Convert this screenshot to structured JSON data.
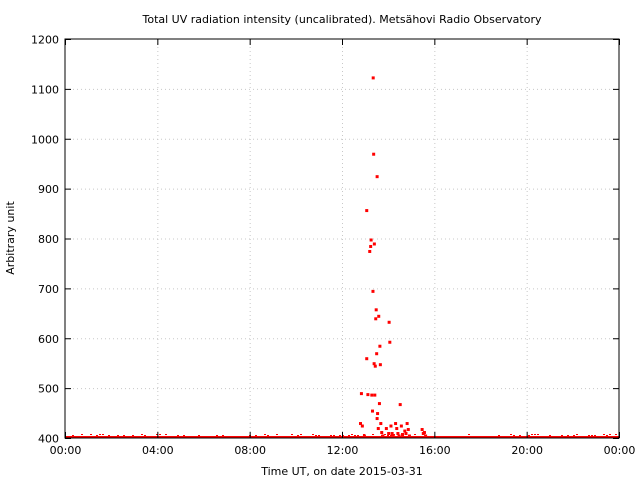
{
  "chart_data": {
    "type": "scatter",
    "title": "Total UV radiation intensity (uncalibrated). Metsähovi Radio Observatory",
    "xlabel": "Time UT, on date 2015-03-31",
    "ylabel": "Arbitrary unit",
    "xlim": [
      0,
      24
    ],
    "ylim": [
      400,
      1200
    ],
    "x_ticks": [
      {
        "value": 0,
        "label": "00:00"
      },
      {
        "value": 4,
        "label": "04:00"
      },
      {
        "value": 8,
        "label": "08:00"
      },
      {
        "value": 12,
        "label": "12:00"
      },
      {
        "value": 16,
        "label": "16:00"
      },
      {
        "value": 20,
        "label": "20:00"
      },
      {
        "value": 24,
        "label": "00:00"
      }
    ],
    "y_ticks": [
      400,
      500,
      600,
      700,
      800,
      900,
      1000,
      1100,
      1200
    ],
    "grid": true,
    "marker_color": "#ff0000",
    "series": [
      {
        "points": [
          [
            12.78,
            430
          ],
          [
            12.82,
            490
          ],
          [
            12.86,
            425
          ],
          [
            12.95,
            405
          ],
          [
            13.05,
            560
          ],
          [
            13.05,
            857
          ],
          [
            13.1,
            488
          ],
          [
            13.18,
            775
          ],
          [
            13.22,
            785
          ],
          [
            13.24,
            798
          ],
          [
            13.27,
            487
          ],
          [
            13.3,
            455
          ],
          [
            13.32,
            695
          ],
          [
            13.33,
            1123
          ],
          [
            13.35,
            970
          ],
          [
            13.37,
            550
          ],
          [
            13.38,
            790
          ],
          [
            13.4,
            487
          ],
          [
            13.42,
            545
          ],
          [
            13.44,
            640
          ],
          [
            13.46,
            658
          ],
          [
            13.48,
            570
          ],
          [
            13.5,
            925
          ],
          [
            13.5,
            440
          ],
          [
            13.52,
            450
          ],
          [
            13.55,
            420
          ],
          [
            13.57,
            645
          ],
          [
            13.6,
            470
          ],
          [
            13.62,
            585
          ],
          [
            13.64,
            548
          ],
          [
            13.66,
            430
          ],
          [
            13.7,
            412
          ],
          [
            13.75,
            405
          ],
          [
            13.9,
            420
          ],
          [
            14.0,
            410
          ],
          [
            14.02,
            633
          ],
          [
            14.05,
            593
          ],
          [
            14.1,
            425
          ],
          [
            14.15,
            410
          ],
          [
            14.2,
            405
          ],
          [
            14.3,
            430
          ],
          [
            14.35,
            420
          ],
          [
            14.4,
            410
          ],
          [
            14.45,
            405
          ],
          [
            14.5,
            468
          ],
          [
            14.55,
            425
          ],
          [
            14.6,
            408
          ],
          [
            14.7,
            415
          ],
          [
            14.75,
            410
          ],
          [
            14.8,
            430
          ],
          [
            14.85,
            418
          ],
          [
            14.9,
            405
          ],
          [
            15.45,
            418
          ],
          [
            15.5,
            410
          ],
          [
            15.55,
            412
          ],
          [
            15.6,
            405
          ]
        ]
      }
    ]
  }
}
